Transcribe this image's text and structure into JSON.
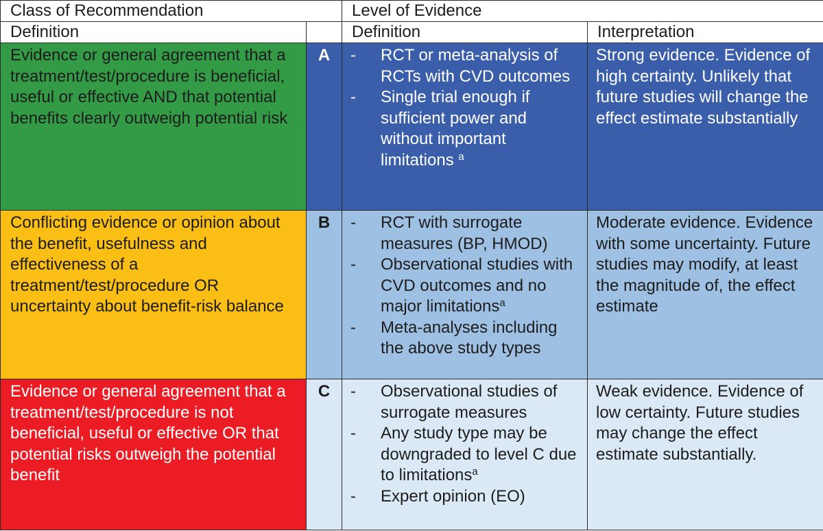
{
  "header": {
    "class_of_recommendation": "Class of Recommendation",
    "level_of_evidence": "Level of Evidence",
    "definition_col1": "Definition",
    "definition_col2": "Definition",
    "interpretation": "Interpretation"
  },
  "colors": {
    "class_I": "#339a45",
    "class_IIb": "#fabe15",
    "class_III": "#ec1c24",
    "level_A": "#3a5ea9",
    "level_B": "#9ec0e2",
    "level_C": "#dbe8f5"
  },
  "rows": [
    {
      "class_definition": "Evidence or general agreement that a treatment/test/procedure is beneficial, useful or effective AND that potential benefits clearly outweigh potential risk",
      "level": "A",
      "bullets": [
        {
          "dash": "-",
          "text": "RCT or meta-analysis of RCTs with CVD outcomes",
          "sup": ""
        },
        {
          "dash": "-",
          "text": "Single trial enough if sufficient power and without important limitations ",
          "sup": "a"
        }
      ],
      "interpretation": "Strong evidence. Evidence of high certainty. Unlikely that future studies will change the effect estimate substantially"
    },
    {
      "class_definition": "Conflicting evidence or opinion about the benefit, usefulness and effectiveness of a treatment/test/procedure OR uncertainty about benefit-risk balance",
      "level": "B",
      "bullets": [
        {
          "dash": "-",
          "text": "RCT with surrogate measures (BP, HMOD)",
          "sup": ""
        },
        {
          "dash": "-",
          "text": "Observational studies with CVD outcomes and no major limitations",
          "sup": "a"
        },
        {
          "dash": "-",
          "text": "Meta-analyses including the above study types",
          "sup": ""
        }
      ],
      "interpretation": "Moderate evidence. Evidence with some uncertainty. Future studies may modify, at least the magnitude of, the effect estimate"
    },
    {
      "class_definition": "Evidence or general agreement that a treatment/test/procedure is not beneficial, useful or effective OR that potential risks outweigh the potential benefit",
      "level": "C",
      "bullets": [
        {
          "dash": "-",
          "text": "Observational studies of surrogate measures",
          "sup": ""
        },
        {
          "dash": "-",
          "text": "Any study type may be downgraded to level C due to limitations",
          "sup": "a"
        },
        {
          "dash": "-",
          "text": "Expert opinion (EO)",
          "sup": ""
        }
      ],
      "interpretation": "Weak evidence. Evidence of low certainty. Future studies may change the effect estimate substantially."
    }
  ]
}
